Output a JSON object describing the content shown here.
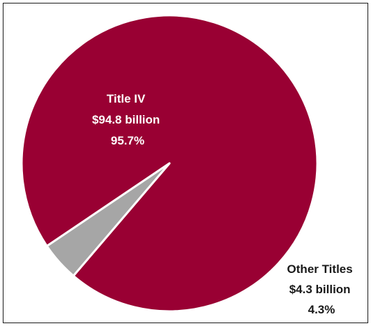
{
  "chart_data": {
    "type": "pie",
    "title": "",
    "slices": [
      {
        "name": "Title IV",
        "amount": "$94.8 billion",
        "percent": "95.7%",
        "value": 95.7,
        "color": "#990033",
        "label_color": "#ffffff"
      },
      {
        "name": "Other Titles",
        "amount": "$4.3 billion",
        "percent": "4.3%",
        "value": 4.3,
        "color": "#a6a6a6",
        "label_color": "#1a1a1a"
      }
    ],
    "start_angle_deg": 146,
    "direction": "clockwise",
    "edge_color": "#ffffff"
  }
}
